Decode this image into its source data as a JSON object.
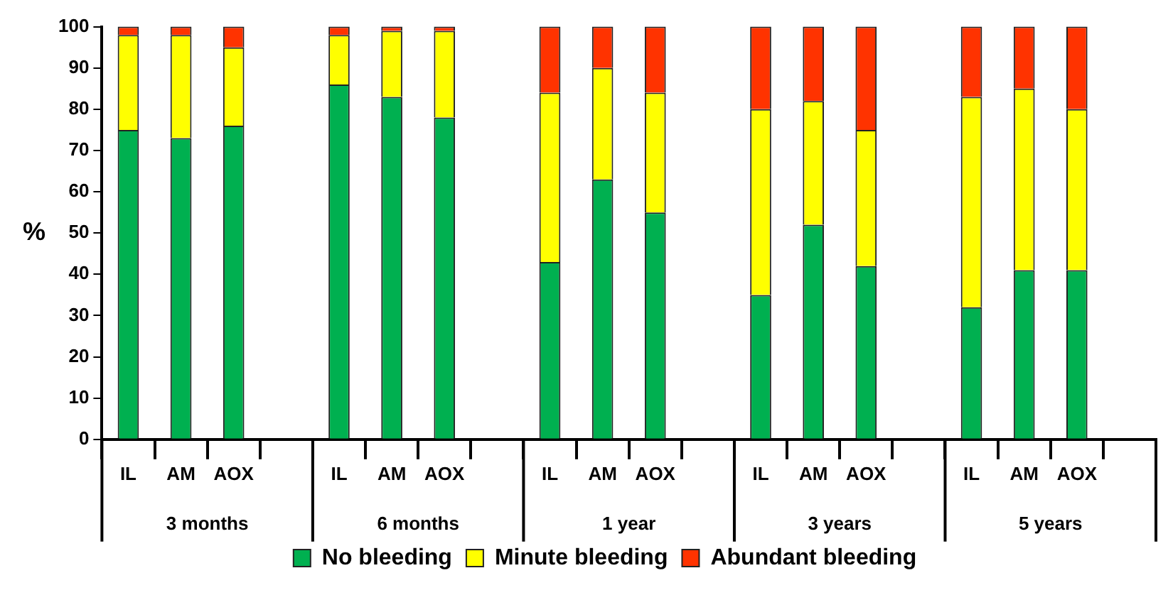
{
  "chart_data": {
    "type": "bar",
    "stacked": true,
    "ylabel": "%",
    "categories": [
      "IL",
      "AM",
      "AOX",
      null,
      "IL",
      "AM",
      "AOX",
      null,
      "IL",
      "AM",
      "AOX",
      null,
      "IL",
      "AM",
      "AOX",
      null,
      "IL",
      "AM",
      "AOX",
      null
    ],
    "series": [
      {
        "name": "No bleeding",
        "color": "#00b050",
        "values": [
          75,
          73,
          76,
          null,
          86,
          83,
          78,
          null,
          43,
          63,
          55,
          null,
          35,
          52,
          42,
          null,
          32,
          41,
          41,
          null
        ]
      },
      {
        "name": "Minute bleeding",
        "color": "#ffff00",
        "values": [
          23,
          25,
          19,
          null,
          12,
          16,
          21,
          null,
          41,
          27,
          29,
          null,
          45,
          30,
          33,
          null,
          51,
          44,
          39,
          null
        ]
      },
      {
        "name": "Abundant bleeding",
        "color": "#ff3300",
        "values": [
          2,
          2,
          5,
          null,
          2,
          1,
          1,
          null,
          16,
          10,
          16,
          null,
          20,
          18,
          25,
          null,
          17,
          15,
          20,
          null
        ]
      }
    ],
    "annotations": [
      "3 months",
      "6 months",
      "1 year",
      "3 years",
      "5 years"
    ],
    "ylim": [
      0,
      100
    ],
    "yticks": [
      0,
      10,
      20,
      30,
      40,
      50,
      60,
      70,
      80,
      90,
      100
    ],
    "grid": false,
    "legend": "bottom"
  }
}
